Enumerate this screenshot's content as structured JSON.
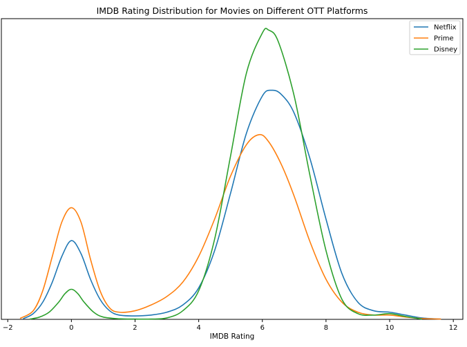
{
  "chart_data": {
    "type": "line",
    "title": "IMDB Rating Distribution for Movies on Different OTT Platforms",
    "xlabel": "IMDB Rating",
    "ylabel": "",
    "xlim": [
      -2.2,
      12.3
    ],
    "ylim": [
      0,
      1.05
    ],
    "x_ticks": [
      -2,
      0,
      2,
      4,
      6,
      8,
      10,
      12
    ],
    "x_tick_labels": [
      "−2",
      "0",
      "2",
      "4",
      "6",
      "8",
      "10",
      "12"
    ],
    "y_ticks_visible": false,
    "grid": false,
    "legend_position": "top-right",
    "series": [
      {
        "name": "Netflix",
        "color": "#1f77b4",
        "x": [
          -1.5,
          -1.2,
          -0.9,
          -0.6,
          -0.3,
          0.0,
          0.3,
          0.6,
          0.9,
          1.2,
          1.5,
          2.0,
          2.5,
          3.0,
          3.5,
          4.0,
          4.5,
          5.0,
          5.5,
          6.0,
          6.3,
          6.6,
          7.0,
          7.5,
          8.0,
          8.5,
          9.0,
          9.5,
          10.0,
          10.5,
          11.0,
          11.6
        ],
        "y": [
          0.003,
          0.02,
          0.06,
          0.13,
          0.22,
          0.275,
          0.23,
          0.14,
          0.07,
          0.03,
          0.015,
          0.012,
          0.015,
          0.025,
          0.05,
          0.11,
          0.24,
          0.44,
          0.65,
          0.78,
          0.8,
          0.785,
          0.72,
          0.56,
          0.35,
          0.16,
          0.06,
          0.03,
          0.025,
          0.015,
          0.005,
          0.001
        ]
      },
      {
        "name": "Prime",
        "color": "#ff7f0e",
        "x": [
          -1.6,
          -1.2,
          -0.9,
          -0.6,
          -0.3,
          0.0,
          0.3,
          0.6,
          0.9,
          1.2,
          1.5,
          2.0,
          2.5,
          3.0,
          3.5,
          4.0,
          4.5,
          5.0,
          5.5,
          5.9,
          6.2,
          6.6,
          7.0,
          7.5,
          8.0,
          8.5,
          9.0,
          9.5,
          10.0,
          10.5,
          11.0,
          11.6
        ],
        "y": [
          0.004,
          0.03,
          0.1,
          0.22,
          0.34,
          0.39,
          0.34,
          0.21,
          0.1,
          0.04,
          0.025,
          0.03,
          0.05,
          0.08,
          0.13,
          0.22,
          0.35,
          0.5,
          0.61,
          0.645,
          0.62,
          0.54,
          0.43,
          0.27,
          0.14,
          0.06,
          0.025,
          0.015,
          0.015,
          0.008,
          0.003,
          0.001
        ]
      },
      {
        "name": "Disney",
        "color": "#2ca02c",
        "x": [
          -1.3,
          -1.0,
          -0.7,
          -0.4,
          -0.2,
          0.0,
          0.2,
          0.4,
          0.7,
          1.0,
          1.5,
          2.0,
          2.5,
          3.0,
          3.5,
          4.0,
          4.5,
          5.0,
          5.5,
          6.0,
          6.2,
          6.5,
          7.0,
          7.5,
          8.0,
          8.5,
          9.0,
          9.5,
          10.0,
          10.5,
          11.0
        ],
        "y": [
          0.001,
          0.008,
          0.025,
          0.06,
          0.09,
          0.105,
          0.09,
          0.06,
          0.025,
          0.008,
          0.002,
          0.001,
          0.001,
          0.005,
          0.03,
          0.1,
          0.28,
          0.57,
          0.86,
          1.0,
          1.01,
          0.97,
          0.78,
          0.5,
          0.24,
          0.07,
          0.02,
          0.015,
          0.02,
          0.01,
          0.001
        ]
      }
    ]
  }
}
